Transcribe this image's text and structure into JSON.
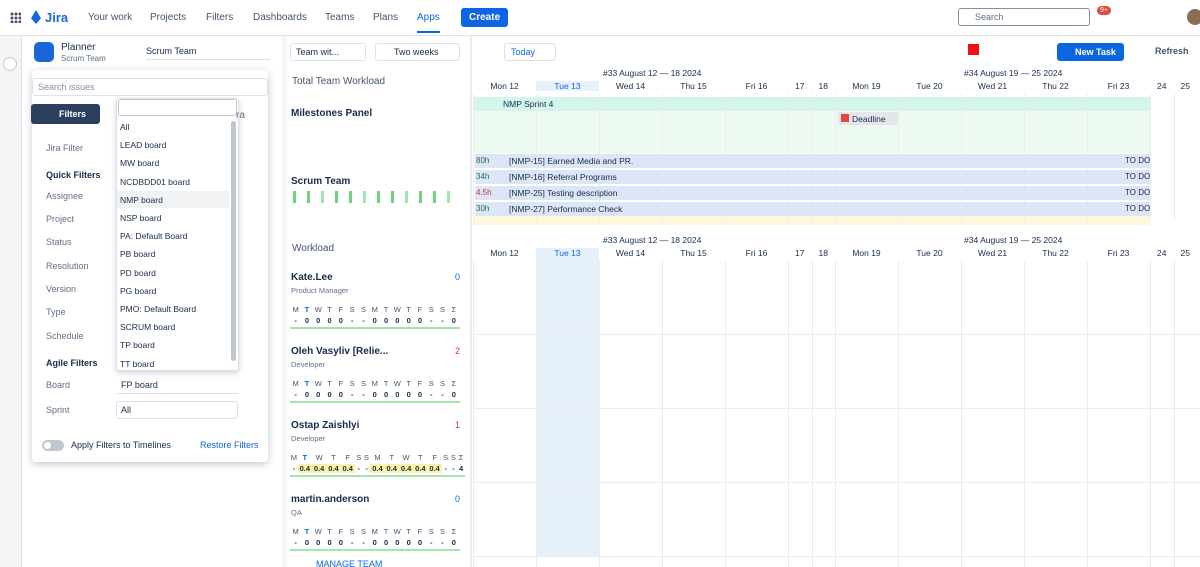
{
  "nav": {
    "logo": "Jira",
    "items": [
      "Your work",
      "Projects",
      "Filters",
      "Dashboards",
      "Teams",
      "Plans",
      "Apps"
    ],
    "create": "Create",
    "search": "Search",
    "badge": "9+"
  },
  "header": {
    "app": "Planner",
    "team": "Scrum Team",
    "team_select": "Scrum Team",
    "view_select": "Team wit...",
    "range_select": "Two weeks",
    "today": "Today",
    "new_task": "New Task",
    "refresh": "Refresh"
  },
  "filters": {
    "search_placeholder": "Search issues",
    "button": "Filters",
    "hidden_text": "ra",
    "labels": [
      "Jira Filter",
      "Quick Filters",
      "Assignee",
      "Project",
      "Status",
      "Resolution",
      "Version",
      "Type",
      "Schedule",
      "Agile Filters",
      "Board",
      "Sprint"
    ],
    "board_value": "FP board",
    "sprint_value": "All",
    "toggle": "Apply Filters to Timelines",
    "restore": "Restore Filters",
    "dropdown": [
      "All",
      "LEAD board",
      "MW board",
      "NCDBDD01 board",
      "NMP board",
      "NSP board",
      "PA: Default Board",
      "PB board",
      "PD board",
      "PG board",
      "PMO: Default Board",
      "SCRUM board",
      "TP board",
      "TT board"
    ]
  },
  "panels": {
    "total": "Total Team Workload",
    "milestones": "Milestones Panel",
    "team": "Scrum Team",
    "workload": "Workload",
    "manage": "MANAGE TEAM"
  },
  "timeline": {
    "weeks": [
      "#33 August 12 — 18 2024",
      "#34 August 19 — 25 2024"
    ],
    "days": [
      "Mon 12",
      "Tue 13",
      "Wed 14",
      "Thu 15",
      "Fri 16",
      "17",
      "18",
      "Mon 19",
      "Tue 20",
      "Wed 21",
      "Thu 22",
      "Fri 23",
      "24",
      "25"
    ],
    "sprint": "NMP Sprint 4",
    "deadline": "Deadline",
    "tasks": [
      {
        "hours": "80h",
        "title": "[NMP-15] Earned Media and PR.",
        "status": "TO DO"
      },
      {
        "hours": "34h",
        "title": "[NMP-16] Referral Programs",
        "status": "TO DO"
      },
      {
        "hours": "4.5h",
        "title": "[NMP-25] Testing description",
        "status": "TO DO"
      },
      {
        "hours": "30h",
        "title": "[NMP-27] Performance Check",
        "status": "TO DO"
      }
    ]
  },
  "workload_days": [
    "M",
    "T",
    "W",
    "T",
    "F",
    "S",
    "S",
    "M",
    "T",
    "W",
    "T",
    "F",
    "S",
    "S",
    "Σ"
  ],
  "members": [
    {
      "name": "Kate.Lee",
      "role": "Product Manager",
      "count": 0,
      "values": [
        "-",
        "0",
        "0",
        "0",
        "0",
        "-",
        "-",
        "0",
        "0",
        "0",
        "0",
        "0",
        "-",
        "-",
        "0"
      ]
    },
    {
      "name": "Oleh Vasyliv [Relie...",
      "role": "Developer",
      "count": 2,
      "values": [
        "-",
        "0",
        "0",
        "0",
        "0",
        "-",
        "-",
        "0",
        "0",
        "0",
        "0",
        "0",
        "-",
        "-",
        "0"
      ]
    },
    {
      "name": "Ostap Zaishlyi",
      "role": "Developer",
      "count": 1,
      "values": [
        "-",
        "0.4",
        "0.4",
        "0.4",
        "0.4",
        "-",
        "-",
        "0.4",
        "0.4",
        "0.4",
        "0.4",
        "0.4",
        "-",
        "-",
        "4"
      ]
    },
    {
      "name": "martin.anderson",
      "role": "QA",
      "count": 0,
      "values": [
        "-",
        "0",
        "0",
        "0",
        "0",
        "-",
        "-",
        "0",
        "0",
        "0",
        "0",
        "0",
        "-",
        "-",
        "0"
      ]
    }
  ]
}
